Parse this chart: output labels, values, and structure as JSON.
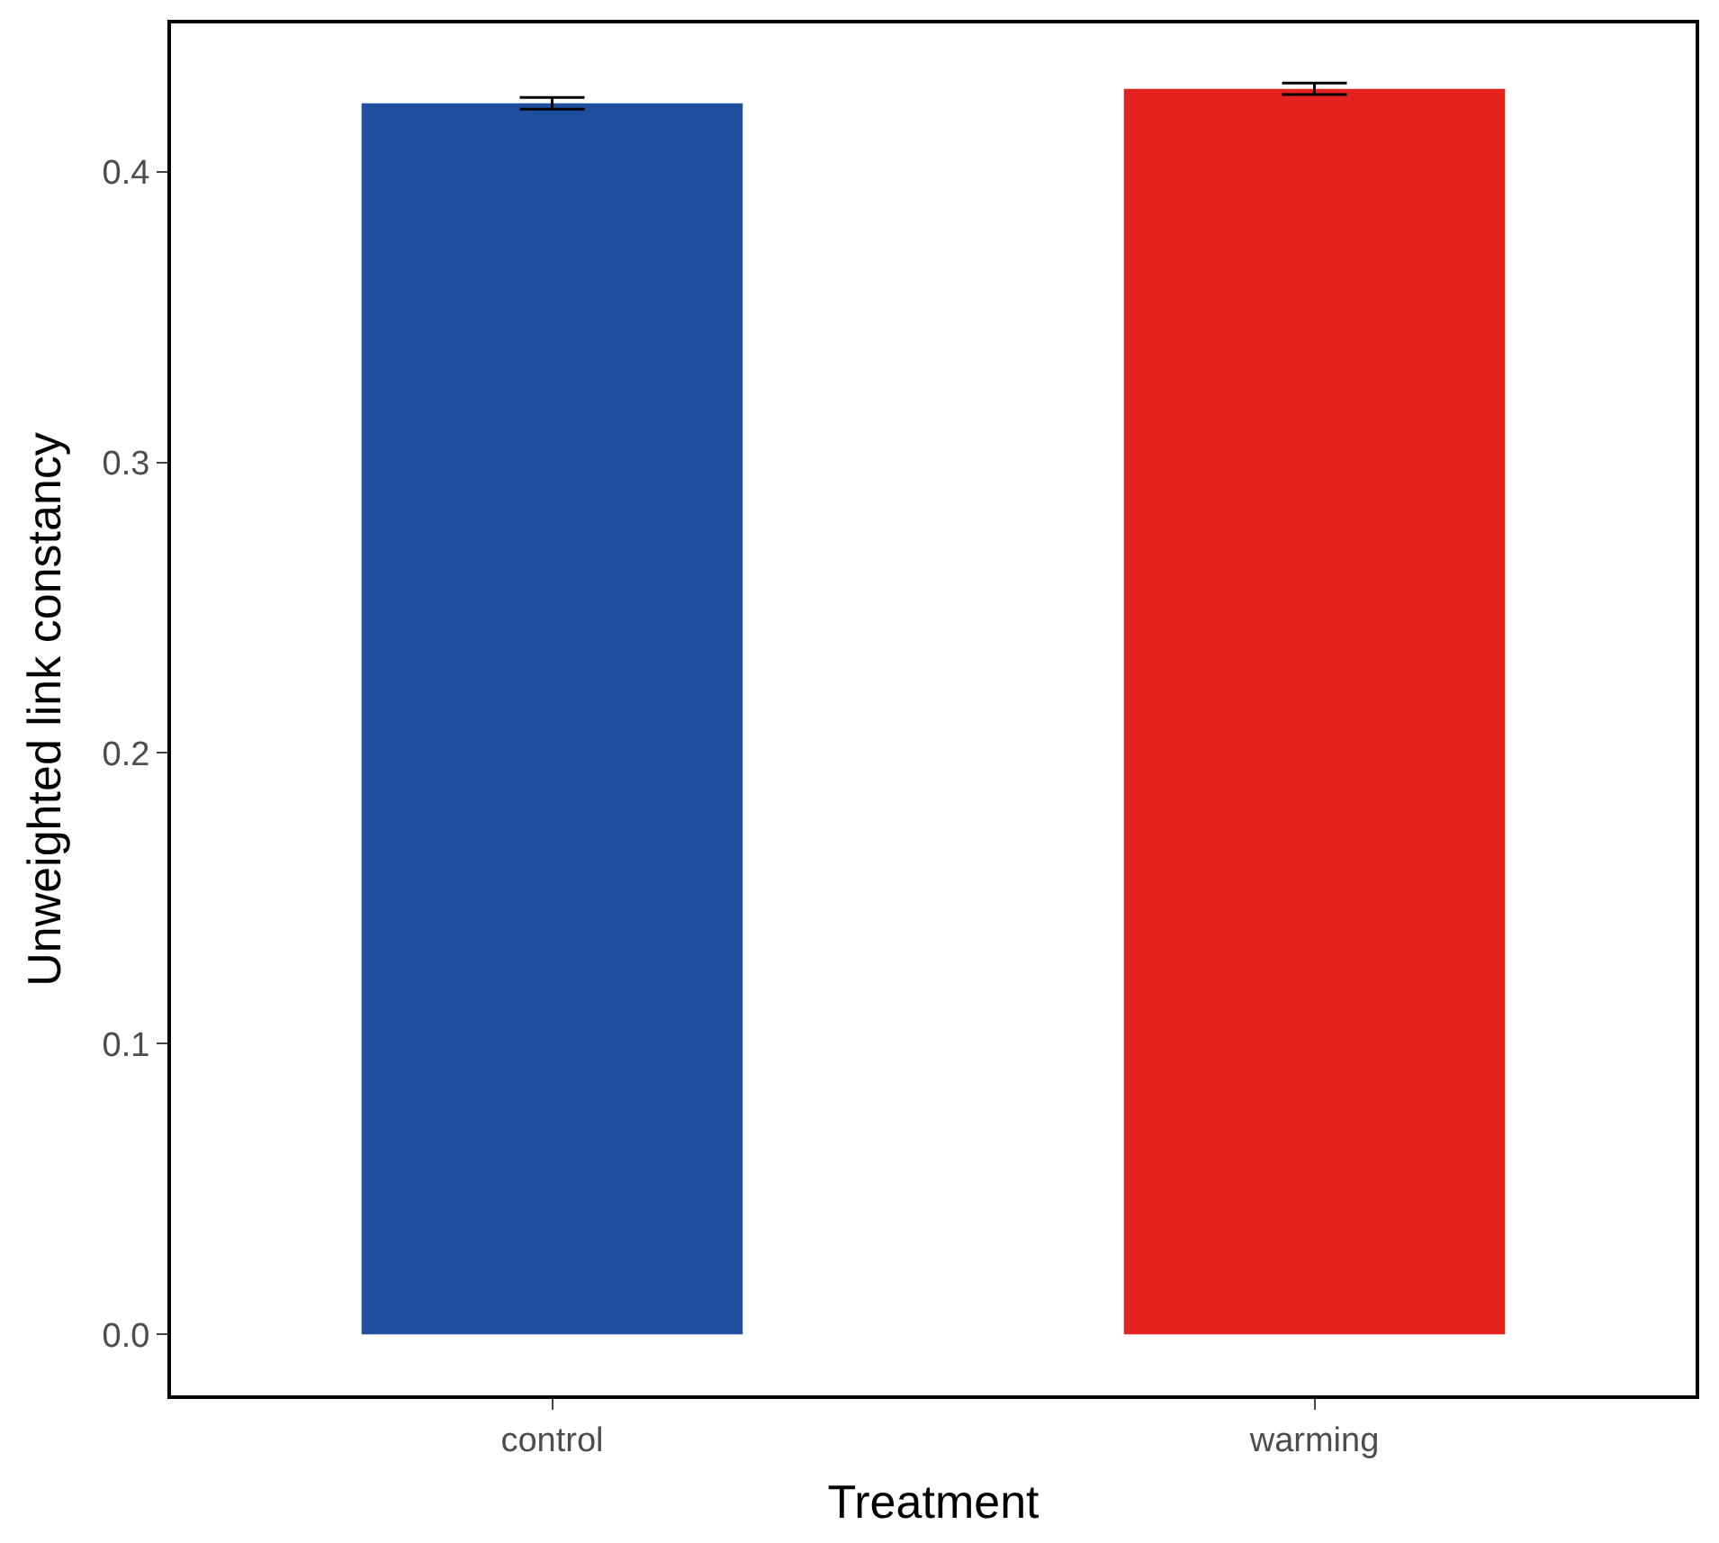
{
  "chart_data": {
    "type": "bar",
    "xlabel": "Treatment",
    "ylabel": "Unweighted link constancy",
    "categories": [
      "control",
      "warming"
    ],
    "values": [
      0.4235,
      0.4285
    ],
    "colors": [
      "#214f9f",
      "#e42320"
    ],
    "errors": [
      0.002,
      0.002
    ],
    "ylim": [
      -0.021,
      0.451
    ],
    "yticks": [
      {
        "value": 0,
        "label": "0.0"
      },
      0.1,
      0.2,
      0.3,
      0.4
    ]
  }
}
